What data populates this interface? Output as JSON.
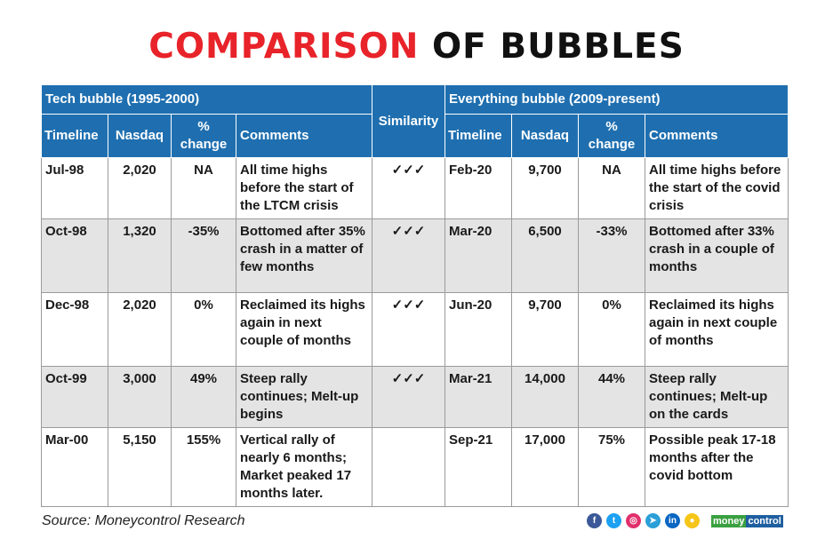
{
  "title": {
    "part1": "COMPARISON",
    "part2": "OF BUBBLES"
  },
  "left_group": "Tech bubble (1995-2000)",
  "right_group": "Everything bubble (2009-present)",
  "similarity_header": "Similarity",
  "columns": [
    "Timeline",
    "Nasdaq",
    "% change",
    "Comments"
  ],
  "rows": [
    {
      "l": [
        "Jul-98",
        "2,020",
        "NA",
        "All time highs before the start of the LTCM crisis"
      ],
      "sim": "✓✓✓",
      "r": [
        "Feb-20",
        "9,700",
        "NA",
        "All time highs before the start of the covid crisis"
      ]
    },
    {
      "l": [
        "Oct-98",
        "1,320",
        "-35%",
        "Bottomed after 35% crash in a matter of few months"
      ],
      "sim": "✓✓✓",
      "r": [
        "Mar-20",
        "6,500",
        "-33%",
        "Bottomed after 33% crash in a couple of months"
      ]
    },
    {
      "l": [
        "Dec-98",
        "2,020",
        "0%",
        "Reclaimed its highs again in next couple of months"
      ],
      "sim": "✓✓✓",
      "r": [
        "Jun-20",
        "9,700",
        "0%",
        "Reclaimed its highs again in next couple of months"
      ]
    },
    {
      "l": [
        "Oct-99",
        "3,000",
        "49%",
        "Steep rally continues; Melt-up begins"
      ],
      "sim": "✓✓✓",
      "r": [
        "Mar-21",
        "14,000",
        "44%",
        "Steep rally continues; Melt-up on the cards"
      ]
    },
    {
      "l": [
        "Mar-00",
        "5,150",
        "155%",
        "Vertical rally of nearly 6 months; Market peaked 17 months later."
      ],
      "sim": "",
      "r": [
        "Sep-21",
        "17,000",
        "75%",
        "Possible peak 17-18 months after the covid bottom"
      ]
    }
  ],
  "source": "Source: Moneycontrol Research",
  "social_icons": [
    {
      "name": "facebook",
      "glyph": "f",
      "color": "#3b5998"
    },
    {
      "name": "twitter",
      "glyph": "t",
      "color": "#1da1f2"
    },
    {
      "name": "instagram",
      "glyph": "◎",
      "color": "#e1306c"
    },
    {
      "name": "telegram",
      "glyph": "➤",
      "color": "#2a9fd8"
    },
    {
      "name": "linkedin",
      "glyph": "in",
      "color": "#0a66c2"
    },
    {
      "name": "koo",
      "glyph": "●",
      "color": "#f5c518"
    }
  ],
  "logo": {
    "a": "money",
    "b": "control"
  }
}
